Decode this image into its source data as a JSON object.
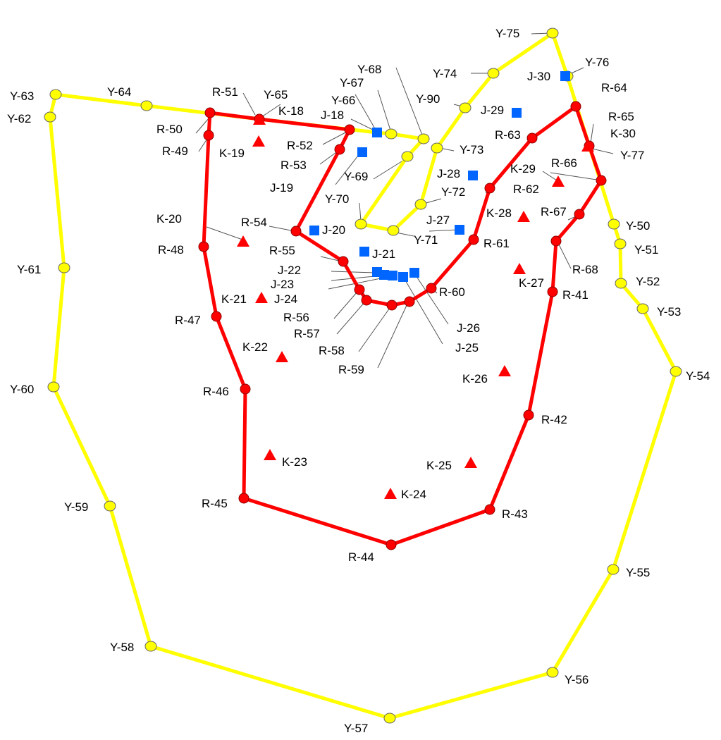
{
  "colors": {
    "yellow_line": "#ffff00",
    "yellow_node": "#ffff00",
    "red_line": "#ff0000",
    "red_node": "#ff0000",
    "blue_square": "#0066ff",
    "red_triangle": "#ff0000",
    "leader": "#555555"
  },
  "yellow_nodes": [
    {
      "id": "y63",
      "label": "Y-63"
    },
    {
      "id": "y62",
      "label": "Y-62"
    },
    {
      "id": "y64",
      "label": "Y-64"
    },
    {
      "id": "y65",
      "label": "Y-65"
    },
    {
      "id": "y66",
      "label": "Y-66"
    },
    {
      "id": "y67",
      "label": "Y-67"
    },
    {
      "id": "y68",
      "label": "Y-68"
    },
    {
      "id": "y69",
      "label": "Y-69"
    },
    {
      "id": "y70",
      "label": "Y-70"
    },
    {
      "id": "y71",
      "label": "Y-71"
    },
    {
      "id": "y72",
      "label": "Y-72"
    },
    {
      "id": "y73",
      "label": "Y-73"
    },
    {
      "id": "y90",
      "label": "Y-90"
    },
    {
      "id": "y74",
      "label": "Y-74"
    },
    {
      "id": "y75",
      "label": "Y-75"
    },
    {
      "id": "y76",
      "label": "Y-76"
    },
    {
      "id": "y77",
      "label": "Y-77"
    },
    {
      "id": "y50",
      "label": "Y-50"
    },
    {
      "id": "y51",
      "label": "Y-51"
    },
    {
      "id": "y52",
      "label": "Y-52"
    },
    {
      "id": "y53",
      "label": "Y-53"
    },
    {
      "id": "y54",
      "label": "Y-54"
    },
    {
      "id": "y55",
      "label": "Y-55"
    },
    {
      "id": "y56",
      "label": "Y-56"
    },
    {
      "id": "y57",
      "label": "Y-57"
    },
    {
      "id": "y58",
      "label": "Y-58"
    },
    {
      "id": "y59",
      "label": "Y-59"
    },
    {
      "id": "y60",
      "label": "Y-60"
    },
    {
      "id": "y61",
      "label": "Y-61"
    }
  ],
  "red_nodes": [
    {
      "id": "r50",
      "label": "R-50"
    },
    {
      "id": "r51",
      "label": "R-51"
    },
    {
      "id": "r49",
      "label": "R-49"
    },
    {
      "id": "r52",
      "label": "R-52"
    },
    {
      "id": "r53",
      "label": "R-53"
    },
    {
      "id": "r54",
      "label": "R-54"
    },
    {
      "id": "r55",
      "label": "R-55"
    },
    {
      "id": "r56",
      "label": "R-56"
    },
    {
      "id": "r57",
      "label": "R-57"
    },
    {
      "id": "r58",
      "label": "R-58"
    },
    {
      "id": "r59",
      "label": "R-59"
    },
    {
      "id": "r60",
      "label": "R-60"
    },
    {
      "id": "r61",
      "label": "R-61"
    },
    {
      "id": "r62",
      "label": "R-62"
    },
    {
      "id": "r63",
      "label": "R-63"
    },
    {
      "id": "r64",
      "label": "R-64"
    },
    {
      "id": "r65",
      "label": "R-65"
    },
    {
      "id": "r66",
      "label": "R-66"
    },
    {
      "id": "r67",
      "label": "R-67"
    },
    {
      "id": "r68",
      "label": "R-68"
    },
    {
      "id": "r41",
      "label": "R-41"
    },
    {
      "id": "r42",
      "label": "R-42"
    },
    {
      "id": "r43",
      "label": "R-43"
    },
    {
      "id": "r44",
      "label": "R-44"
    },
    {
      "id": "r45",
      "label": "R-45"
    },
    {
      "id": "r46",
      "label": "R-46"
    },
    {
      "id": "r47",
      "label": "R-47"
    },
    {
      "id": "r48",
      "label": "R-48"
    }
  ],
  "blue_markers": [
    {
      "id": "j18",
      "label": "J-18"
    },
    {
      "id": "j19",
      "label": "J-19"
    },
    {
      "id": "j20",
      "label": "J-20"
    },
    {
      "id": "j21",
      "label": "J-21"
    },
    {
      "id": "j22",
      "label": "J-22"
    },
    {
      "id": "j23",
      "label": "J-23"
    },
    {
      "id": "j24",
      "label": "J-24"
    },
    {
      "id": "j25",
      "label": "J-25"
    },
    {
      "id": "j26",
      "label": "J-26"
    },
    {
      "id": "j27",
      "label": "J-27"
    },
    {
      "id": "j28",
      "label": "J-28"
    },
    {
      "id": "j29",
      "label": "J-29"
    },
    {
      "id": "j30",
      "label": "J-30"
    }
  ],
  "triangle_markers": [
    {
      "id": "k18",
      "label": "K-18"
    },
    {
      "id": "k19",
      "label": "K-19"
    },
    {
      "id": "k20",
      "label": "K-20"
    },
    {
      "id": "k21",
      "label": "K-21"
    },
    {
      "id": "k22",
      "label": "K-22"
    },
    {
      "id": "k23",
      "label": "K-23"
    },
    {
      "id": "k24",
      "label": "K-24"
    },
    {
      "id": "k25",
      "label": "K-25"
    },
    {
      "id": "k26",
      "label": "K-26"
    },
    {
      "id": "k27",
      "label": "K-27"
    },
    {
      "id": "k28",
      "label": "K-28"
    },
    {
      "id": "k29",
      "label": "K-29"
    },
    {
      "id": "k30",
      "label": "K-30"
    }
  ]
}
